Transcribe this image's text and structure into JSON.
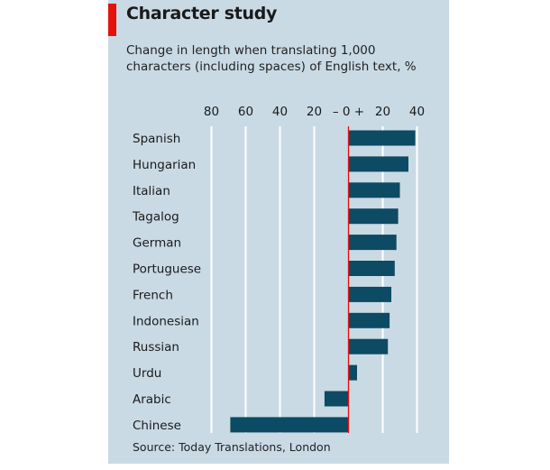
{
  "chart_data": {
    "type": "bar",
    "orientation": "horizontal",
    "title": "Character study",
    "subtitle": "Change in length when translating 1,000 characters (including spaces) of English text, %",
    "source": "Source: Today Translations, London",
    "categories": [
      "Spanish",
      "Hungarian",
      "Italian",
      "Tagalog",
      "German",
      "Portuguese",
      "French",
      "Indonesian",
      "Russian",
      "Urdu",
      "Arabic",
      "Chinese"
    ],
    "values": [
      39,
      35,
      30,
      29,
      28,
      27,
      25,
      24,
      23,
      5,
      -14,
      -69
    ],
    "xlim": [
      -80,
      40
    ],
    "ticks": [
      -80,
      -60,
      -40,
      -20,
      0,
      20,
      40
    ],
    "tick_labels": [
      "80",
      "60",
      "40",
      "20",
      "– 0 +",
      "20",
      "40"
    ],
    "grid": true,
    "colors": {
      "bar": "#0d4a64",
      "zero_line": "#e3120b",
      "background": "#c9dae5",
      "grid": "#ffffff",
      "accent": "#e3120b"
    }
  }
}
